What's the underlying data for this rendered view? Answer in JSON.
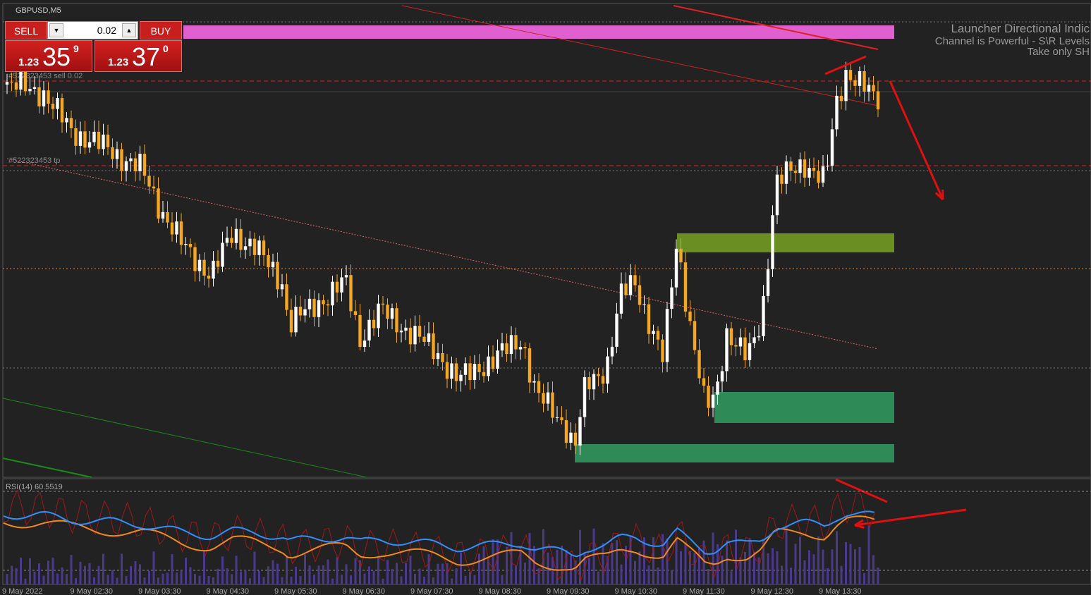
{
  "window": {
    "symbol": "GBPUSD,M5"
  },
  "trade_panel": {
    "sell": "SELL",
    "buy": "BUY",
    "lot": 0.02,
    "bid": {
      "big": 1.23,
      "pips": 35,
      "point": 9
    },
    "ask": {
      "big": 1.23,
      "pips": 37,
      "point": 0
    }
  },
  "chart": {
    "order_line": "#522323453 sell 0.02",
    "tp_line": "#522323453 tp",
    "indicator_text": [
      "Launcher Directional Indic",
      "Channel is Powerful - S\\R Levels",
      "Take only SH"
    ],
    "rsi_label": "RSI(14) 60.5519",
    "time_labels": [
      "9 May 2022",
      "9 May 02:30",
      "9 May 03:30",
      "9 May 04:30",
      "9 May 05:30",
      "9 May 06:30",
      "9 May 07:30",
      "9 May 08:30",
      "9 May 09:30",
      "9 May 10:30",
      "9 May 11:30",
      "9 May 12:30",
      "9 May 13:30"
    ]
  }
}
